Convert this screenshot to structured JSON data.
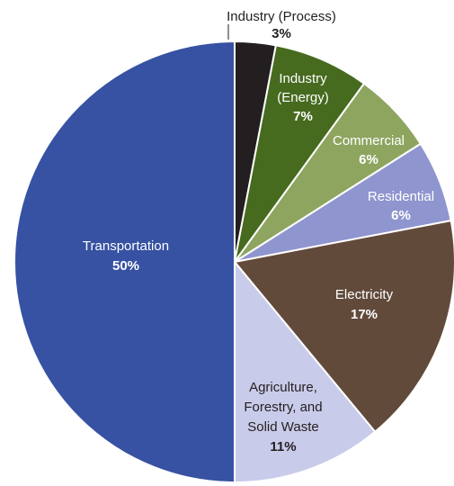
{
  "chart_data": {
    "type": "pie",
    "title": "",
    "slices": [
      {
        "label": "Industry (Process)",
        "label_lines": [
          "Industry (Process)"
        ],
        "value": 3,
        "percent_text": "3%",
        "color": "#231f20",
        "text_color": "#231f20"
      },
      {
        "label": "Industry (Energy)",
        "label_lines": [
          "Industry",
          "(Energy)"
        ],
        "value": 7,
        "percent_text": "7%",
        "color": "#466a1e",
        "text_color": "#ffffff"
      },
      {
        "label": "Commercial",
        "label_lines": [
          "Commercial"
        ],
        "value": 6,
        "percent_text": "6%",
        "color": "#8ea560",
        "text_color": "#ffffff"
      },
      {
        "label": "Residential",
        "label_lines": [
          "Residential"
        ],
        "value": 6,
        "percent_text": "6%",
        "color": "#8f95ce",
        "text_color": "#ffffff"
      },
      {
        "label": "Electricity",
        "label_lines": [
          "Electricity"
        ],
        "value": 17,
        "percent_text": "17%",
        "color": "#624a3b",
        "text_color": "#ffffff"
      },
      {
        "label": "Agriculture, Forestry, and Solid Waste",
        "label_lines": [
          "Agriculture,",
          "Forestry, and",
          "Solid Waste"
        ],
        "value": 11,
        "percent_text": "11%",
        "color": "#c9cbea",
        "text_color": "#231f20"
      },
      {
        "label": "Transportation",
        "label_lines": [
          "Transportation"
        ],
        "value": 50,
        "percent_text": "50%",
        "color": "#3751a3",
        "text_color": "#ffffff"
      }
    ],
    "start_angle_deg": 0,
    "direction": "clockwise",
    "legend": "none"
  }
}
